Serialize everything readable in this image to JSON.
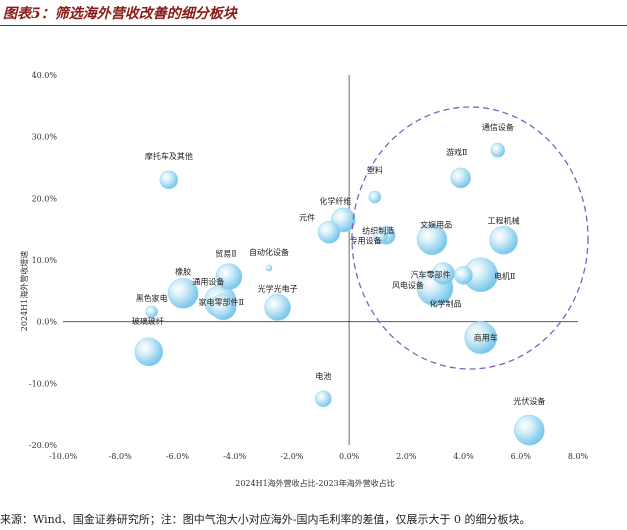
{
  "header": {
    "title": "图表5：筛选海外营收改善的细分板块"
  },
  "footer": {
    "source": "来源：Wind、国金证券研究所；注：图中气泡大小对应海外-国内毛利率的差值，仅展示大于 0 的细分板块。"
  },
  "chart_data": {
    "type": "bubble",
    "title": "筛选海外营收改善的细分板块",
    "xlabel": "2024H1海外营收占比-2023年海外营收占比",
    "ylabel": "2024H1海外营收增速",
    "xlim": [
      -10.0,
      8.0
    ],
    "ylim": [
      -20.0,
      40.0
    ],
    "x_ticks": [
      -10,
      -8,
      -6,
      -4,
      -2,
      0,
      2,
      4,
      6,
      8
    ],
    "y_ticks": [
      -20,
      -10,
      0,
      10,
      20,
      30,
      40
    ],
    "x_tick_labels": [
      "-10.0%",
      "-8.0%",
      "-6.0%",
      "-4.0%",
      "-2.0%",
      "0.0%",
      "2.0%",
      "4.0%",
      "6.0%",
      "8.0%"
    ],
    "y_tick_labels": [
      "-20.0%",
      "-10.0%",
      "0.0%",
      "10.0%",
      "20.0%",
      "30.0%",
      "40.0%"
    ],
    "unit": "%",
    "highlight": "dashed purple circle around upper-right quadrant",
    "points": [
      {
        "name": "通信设备",
        "x": 5.2,
        "y": 27.8,
        "size": 7
      },
      {
        "name": "摩托车及其他",
        "x": -6.3,
        "y": 23.0,
        "size": 9
      },
      {
        "name": "游戏Ⅱ",
        "x": 3.9,
        "y": 23.3,
        "size": 10
      },
      {
        "name": "塑料",
        "x": 0.9,
        "y": 20.2,
        "size": 6
      },
      {
        "name": "化学纤维",
        "x": -0.2,
        "y": 16.5,
        "size": 12
      },
      {
        "name": "元件",
        "x": -0.7,
        "y": 14.5,
        "size": 11
      },
      {
        "name": "纺织制造",
        "x": 1.3,
        "y": 14.0,
        "size": 9
      },
      {
        "name": "专用设备",
        "x": 1.1,
        "y": 13.8,
        "size": 7
      },
      {
        "name": "文娱用品",
        "x": 2.9,
        "y": 13.3,
        "size": 15
      },
      {
        "name": "工程机械",
        "x": 5.4,
        "y": 13.2,
        "size": 14
      },
      {
        "name": "自动化设备",
        "x": -2.8,
        "y": 8.7,
        "size": 3
      },
      {
        "name": "贸易Ⅱ",
        "x": -4.2,
        "y": 7.3,
        "size": 13
      },
      {
        "name": "汽车零部件",
        "x": 3.3,
        "y": 7.8,
        "size": 11
      },
      {
        "name": "电机Ⅱ",
        "x": 4.6,
        "y": 7.6,
        "size": 17
      },
      {
        "name": "风电设备",
        "x": 3.0,
        "y": 5.5,
        "size": 18
      },
      {
        "name": "橡胶",
        "x": -5.8,
        "y": 4.6,
        "size": 15
      },
      {
        "name": "黑色家电",
        "x": -6.9,
        "y": 1.6,
        "size": 6
      },
      {
        "name": "通用设备",
        "x": -4.5,
        "y": 3.3,
        "size": 16
      },
      {
        "name": "家电零部件Ⅱ",
        "x": -4.4,
        "y": 2.4,
        "size": 13
      },
      {
        "name": "光学光电子",
        "x": -2.5,
        "y": 2.3,
        "size": 13
      },
      {
        "name": "化学制品",
        "x": 4.0,
        "y": 7.5,
        "size": 9
      },
      {
        "name": "玻璃玻纤",
        "x": -7.0,
        "y": -4.9,
        "size": 14
      },
      {
        "name": "商用车",
        "x": 4.6,
        "y": -2.6,
        "size": 16
      },
      {
        "name": "电池",
        "x": -0.9,
        "y": -12.5,
        "size": 8
      },
      {
        "name": "光伏设备",
        "x": 6.3,
        "y": -17.6,
        "size": 15
      }
    ]
  }
}
